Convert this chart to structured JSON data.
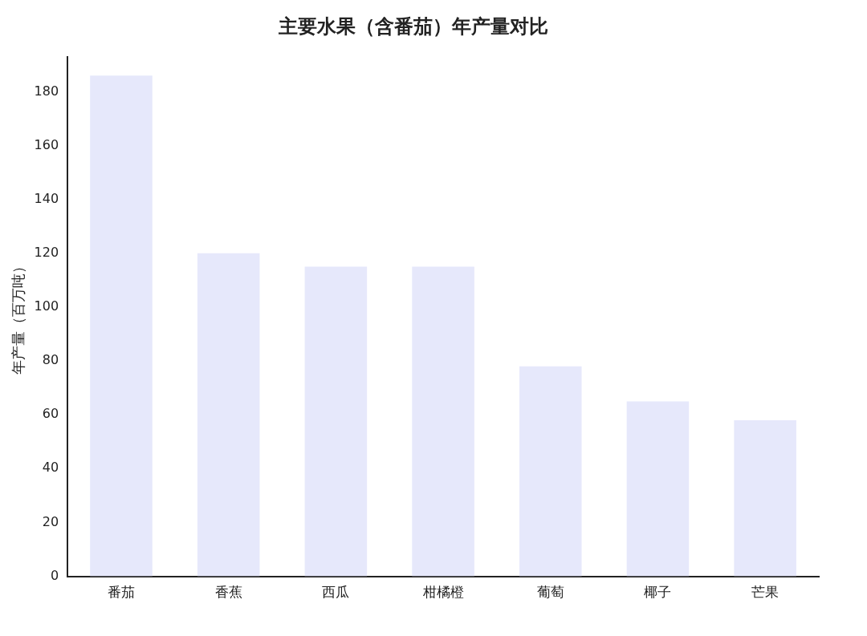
{
  "chart_data": {
    "type": "bar",
    "title": "主要水果（含番茄）年产量对比",
    "ylabel": "年产量（百万吨）",
    "categories": [
      "番茄",
      "香蕉",
      "西瓜",
      "柑橘橙",
      "葡萄",
      "椰子",
      "芒果"
    ],
    "values": [
      186,
      120,
      115,
      115,
      78,
      65,
      58
    ],
    "color": "#e6e8fb",
    "ylim": [
      0,
      193
    ],
    "yticks": [
      0,
      20,
      40,
      60,
      80,
      100,
      120,
      140,
      160,
      180
    ],
    "grid": false,
    "legend": false
  }
}
